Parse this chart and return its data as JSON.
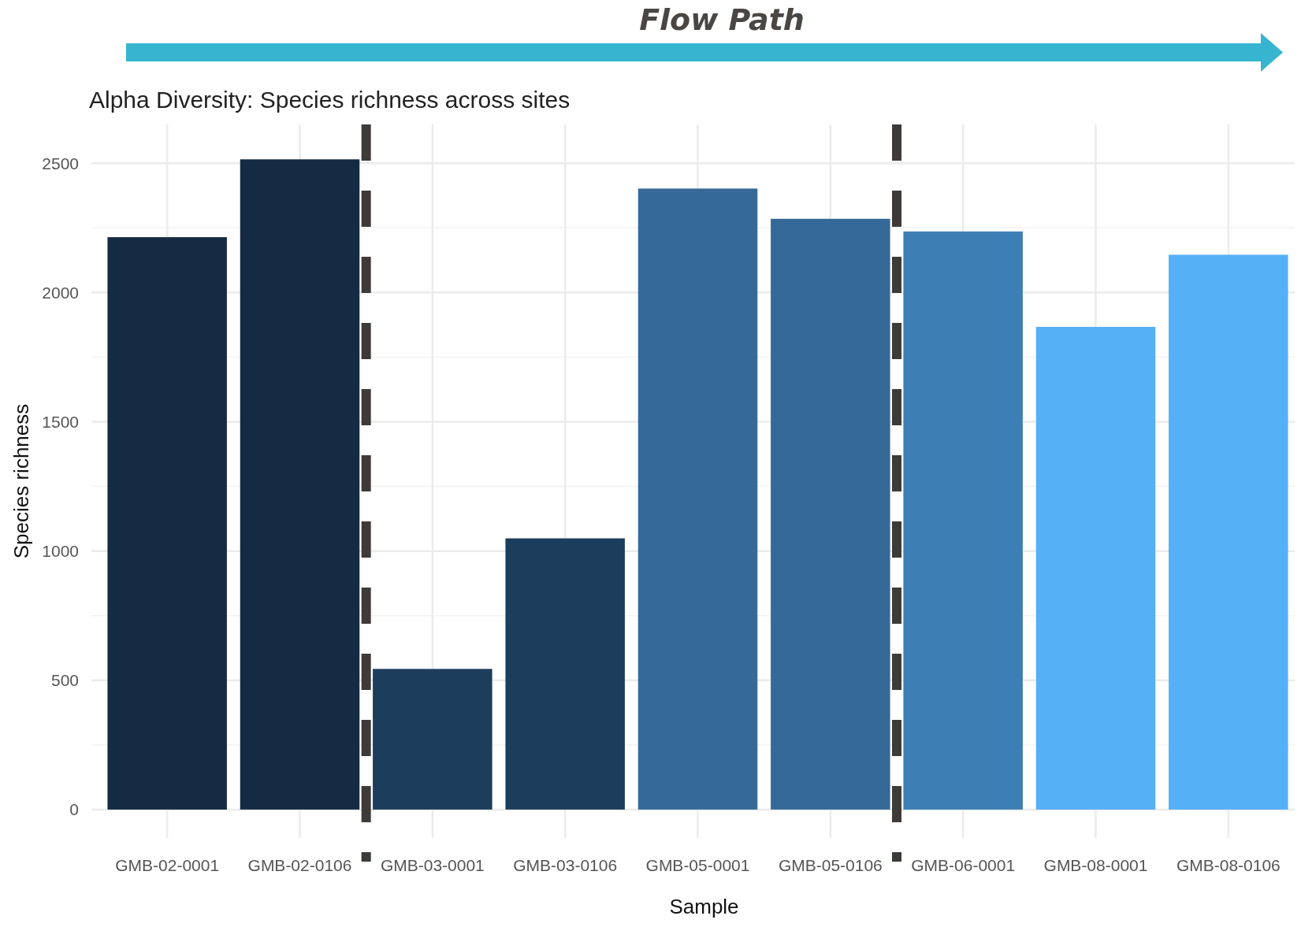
{
  "chart_data": {
    "type": "bar",
    "title": "Alpha Diversity: Species richness across sites",
    "xlabel": "Sample",
    "ylabel": "Species richness",
    "categories": [
      "GMB-02-0001",
      "GMB-02-0106",
      "GMB-03-0001",
      "GMB-03-0106",
      "GMB-05-0001",
      "GMB-05-0106",
      "GMB-06-0001",
      "GMB-08-0001",
      "GMB-08-0106"
    ],
    "values": [
      2214,
      2515,
      544,
      1049,
      2402,
      2285,
      2236,
      1867,
      2146
    ],
    "colors": [
      "#152a43",
      "#152a43",
      "#1d3d5c",
      "#1d3d5c",
      "#356a98",
      "#356a98",
      "#3d7eb5",
      "#56b0f5",
      "#56b0f5"
    ],
    "ylim": [
      -110,
      2650
    ],
    "yticks": [
      0,
      500,
      1000,
      1500,
      2000,
      2500
    ],
    "grid": true,
    "annotations": [
      "Flow Path"
    ]
  }
}
